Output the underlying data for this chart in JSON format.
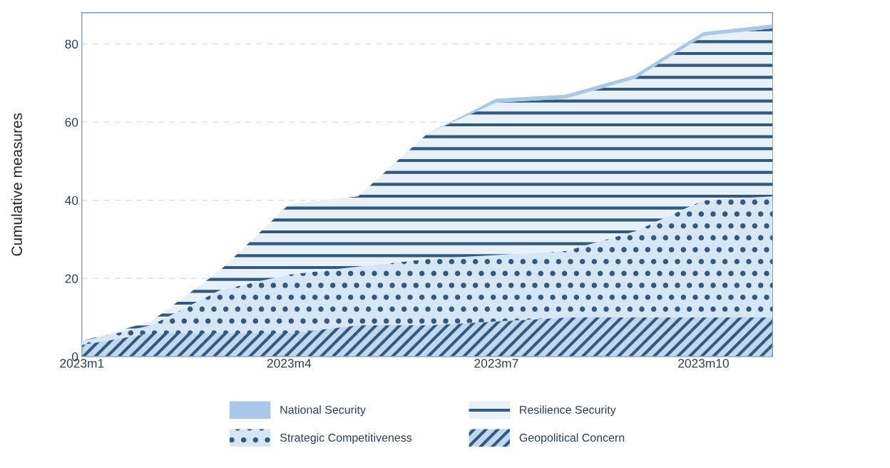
{
  "chart_data": {
    "type": "area",
    "stacked": true,
    "ylabel": "Cumulative measures",
    "categories": [
      "2023m1",
      null,
      null,
      "2023m4",
      null,
      null,
      "2023m7",
      null,
      null,
      "2023m10",
      null
    ],
    "series": [
      {
        "name": "Geopolitical Concern",
        "color": "#c0d8ee",
        "values": [
          3,
          6,
          6,
          6,
          8,
          8,
          9,
          10,
          10,
          10,
          10
        ]
      },
      {
        "name": "Strategic Competitiveness",
        "color": "#d6e6f5",
        "values": [
          1,
          2,
          11,
          15,
          15,
          17,
          17,
          17,
          22,
          30,
          31
        ]
      },
      {
        "name": "Resilience Security",
        "color": "#e8f0f8",
        "values": [
          0,
          1,
          5,
          18,
          18,
          32,
          39,
          39,
          39,
          42,
          43
        ]
      },
      {
        "name": "National Security",
        "color": "#a9c8e8",
        "values": [
          0,
          0,
          0,
          0,
          0,
          0,
          1,
          1,
          1,
          1,
          1
        ]
      }
    ],
    "ylim": [
      0,
      88
    ],
    "yticks": [
      0,
      20,
      40,
      60,
      80
    ],
    "grid": "y",
    "legend": "bottom"
  }
}
